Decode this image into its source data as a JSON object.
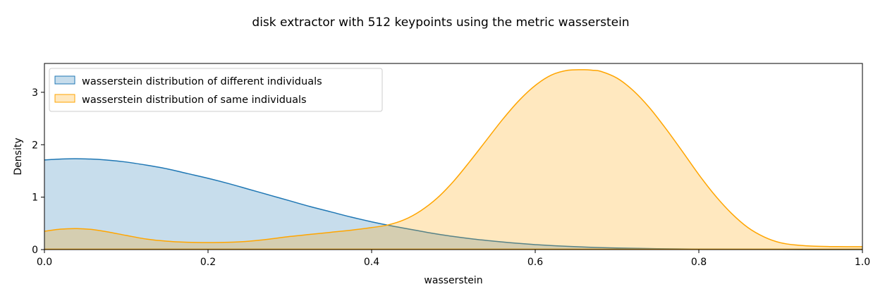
{
  "chart_data": {
    "type": "area",
    "title": "disk extractor with 512 keypoints using the metric wasserstein",
    "xlabel": "wasserstein",
    "ylabel": "Density",
    "xlim": [
      0.0,
      1.0
    ],
    "ylim": [
      0,
      3.55
    ],
    "xticks": [
      0.0,
      0.2,
      0.4,
      0.6,
      0.8,
      1.0
    ],
    "xtick_labels": [
      "0.0",
      "0.2",
      "0.4",
      "0.6",
      "0.8",
      "1.0"
    ],
    "yticks": [
      0,
      1,
      2,
      3
    ],
    "ytick_labels": [
      "0",
      "1",
      "2",
      "3"
    ],
    "grid": false,
    "legend_position": "upper-left",
    "series": [
      {
        "name": "wasserstein distribution of different individuals",
        "color": "#1f77b4",
        "fill": "rgba(31,119,180,0.25)",
        "x": [
          0.0,
          0.025,
          0.05,
          0.075,
          0.1,
          0.125,
          0.15,
          0.175,
          0.2,
          0.225,
          0.25,
          0.275,
          0.3,
          0.325,
          0.35,
          0.375,
          0.4,
          0.425,
          0.45,
          0.475,
          0.5,
          0.525,
          0.55,
          0.575,
          0.6,
          0.625,
          0.65,
          0.675,
          0.7,
          0.75,
          0.8,
          0.85,
          0.9,
          0.95,
          1.0
        ],
        "y": [
          1.71,
          1.73,
          1.73,
          1.71,
          1.67,
          1.61,
          1.54,
          1.45,
          1.36,
          1.26,
          1.15,
          1.04,
          0.93,
          0.82,
          0.72,
          0.62,
          0.53,
          0.45,
          0.38,
          0.31,
          0.25,
          0.2,
          0.16,
          0.125,
          0.095,
          0.072,
          0.055,
          0.04,
          0.03,
          0.017,
          0.009,
          0.005,
          0.003,
          0.002,
          0.001
        ]
      },
      {
        "name": "wasserstein distribution of same individuals",
        "color": "#ffa500",
        "fill": "rgba(255,165,0,0.25)",
        "x": [
          0.0,
          0.02,
          0.04,
          0.06,
          0.08,
          0.1,
          0.125,
          0.15,
          0.175,
          0.2,
          0.225,
          0.25,
          0.275,
          0.3,
          0.325,
          0.35,
          0.375,
          0.4,
          0.42,
          0.44,
          0.46,
          0.48,
          0.5,
          0.52,
          0.54,
          0.56,
          0.58,
          0.6,
          0.62,
          0.64,
          0.66,
          0.67,
          0.68,
          0.7,
          0.72,
          0.74,
          0.76,
          0.78,
          0.8,
          0.82,
          0.84,
          0.86,
          0.88,
          0.9,
          0.92,
          0.94,
          0.96,
          0.98,
          1.0
        ],
        "y": [
          0.35,
          0.39,
          0.4,
          0.38,
          0.33,
          0.27,
          0.2,
          0.16,
          0.14,
          0.135,
          0.14,
          0.16,
          0.2,
          0.25,
          0.29,
          0.33,
          0.37,
          0.42,
          0.47,
          0.57,
          0.74,
          0.98,
          1.3,
          1.68,
          2.08,
          2.48,
          2.84,
          3.13,
          3.33,
          3.42,
          3.43,
          3.42,
          3.4,
          3.27,
          3.03,
          2.7,
          2.3,
          1.87,
          1.43,
          1.03,
          0.69,
          0.42,
          0.24,
          0.13,
          0.085,
          0.065,
          0.058,
          0.056,
          0.055
        ]
      }
    ]
  }
}
